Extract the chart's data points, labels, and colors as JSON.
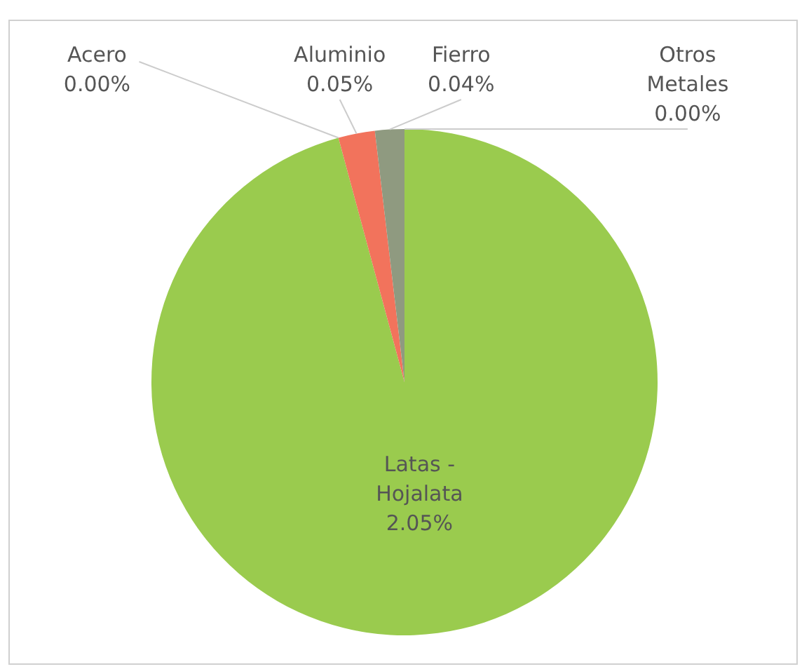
{
  "chart_data": {
    "type": "pie",
    "categories": [
      "Latas - Hojalata",
      "Acero",
      "Aluminio",
      "Fierro",
      "Otros Metales"
    ],
    "values": [
      2.05,
      0,
      0.05,
      0.04,
      0
    ],
    "value_labels": [
      "2.05%",
      "0.00%",
      "0.05%",
      "0.04%",
      "0.00%"
    ],
    "colors": [
      "#9acb4e",
      "#4f81bd",
      "#f2735c",
      "#8f9a80",
      "#f2c14e"
    ],
    "legend": false
  }
}
